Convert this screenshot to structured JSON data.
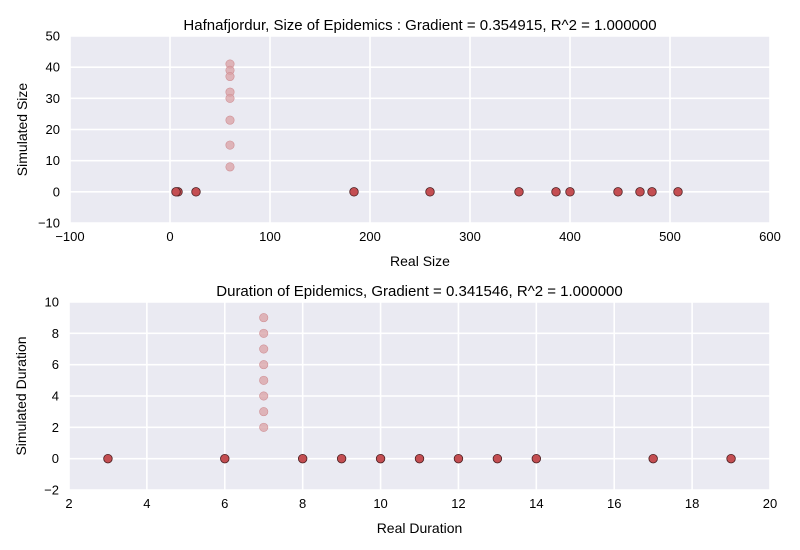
{
  "chart_data": [
    {
      "type": "scatter",
      "title": "Hafnafjordur, Size of Epidemics : Gradient = 0.354915, R^2 = 1.000000",
      "xlabel": "Real Size",
      "ylabel": "Simulated Size",
      "xlim": [
        -100,
        600
      ],
      "ylim": [
        -10,
        50
      ],
      "xticks": [
        "−100",
        "0",
        "100",
        "200",
        "300",
        "400",
        "500",
        "600"
      ],
      "yticks": [
        "−10",
        "0",
        "10",
        "20",
        "30",
        "40",
        "50"
      ],
      "grid": true,
      "series": [
        {
          "color": "#c44e52",
          "points": [
            {
              "x": 8,
              "y": 0
            },
            {
              "x": 6,
              "y": 0
            },
            {
              "x": 26,
              "y": 0
            },
            {
              "x": 184,
              "y": 0
            },
            {
              "x": 260,
              "y": 0
            },
            {
              "x": 349,
              "y": 0
            },
            {
              "x": 386,
              "y": 0
            },
            {
              "x": 400,
              "y": 0
            },
            {
              "x": 448,
              "y": 0
            },
            {
              "x": 470,
              "y": 0
            },
            {
              "x": 482,
              "y": 0
            },
            {
              "x": 508,
              "y": 0
            }
          ]
        },
        {
          "color": "#d9a0a4",
          "points": [
            {
              "x": 60,
              "y": 41
            },
            {
              "x": 60,
              "y": 39
            },
            {
              "x": 60,
              "y": 37
            },
            {
              "x": 60,
              "y": 32
            },
            {
              "x": 60,
              "y": 30
            },
            {
              "x": 60,
              "y": 23
            },
            {
              "x": 60,
              "y": 15
            },
            {
              "x": 60,
              "y": 8
            }
          ]
        }
      ]
    },
    {
      "type": "scatter",
      "title": "Duration of Epidemics, Gradient = 0.341546, R^2 = 1.000000",
      "xlabel": "Real Duration",
      "ylabel": "Simulated Duration",
      "xlim": [
        2,
        20
      ],
      "ylim": [
        -2,
        10
      ],
      "xticks": [
        "2",
        "4",
        "6",
        "8",
        "10",
        "12",
        "14",
        "16",
        "18",
        "20"
      ],
      "yticks": [
        "−2",
        "0",
        "2",
        "4",
        "6",
        "8",
        "10"
      ],
      "grid": true,
      "series": [
        {
          "color": "#c44e52",
          "points": [
            {
              "x": 3,
              "y": 0
            },
            {
              "x": 6,
              "y": 0
            },
            {
              "x": 8,
              "y": 0
            },
            {
              "x": 9,
              "y": 0
            },
            {
              "x": 10,
              "y": 0
            },
            {
              "x": 11,
              "y": 0
            },
            {
              "x": 12,
              "y": 0
            },
            {
              "x": 13,
              "y": 0
            },
            {
              "x": 14,
              "y": 0
            },
            {
              "x": 17,
              "y": 0
            },
            {
              "x": 19,
              "y": 0
            }
          ]
        },
        {
          "color": "#d9a0a4",
          "points": [
            {
              "x": 7,
              "y": 9
            },
            {
              "x": 7,
              "y": 8
            },
            {
              "x": 7,
              "y": 7
            },
            {
              "x": 7,
              "y": 6
            },
            {
              "x": 7,
              "y": 5
            },
            {
              "x": 7,
              "y": 4
            },
            {
              "x": 7,
              "y": 3
            },
            {
              "x": 7,
              "y": 2
            }
          ]
        }
      ]
    }
  ]
}
